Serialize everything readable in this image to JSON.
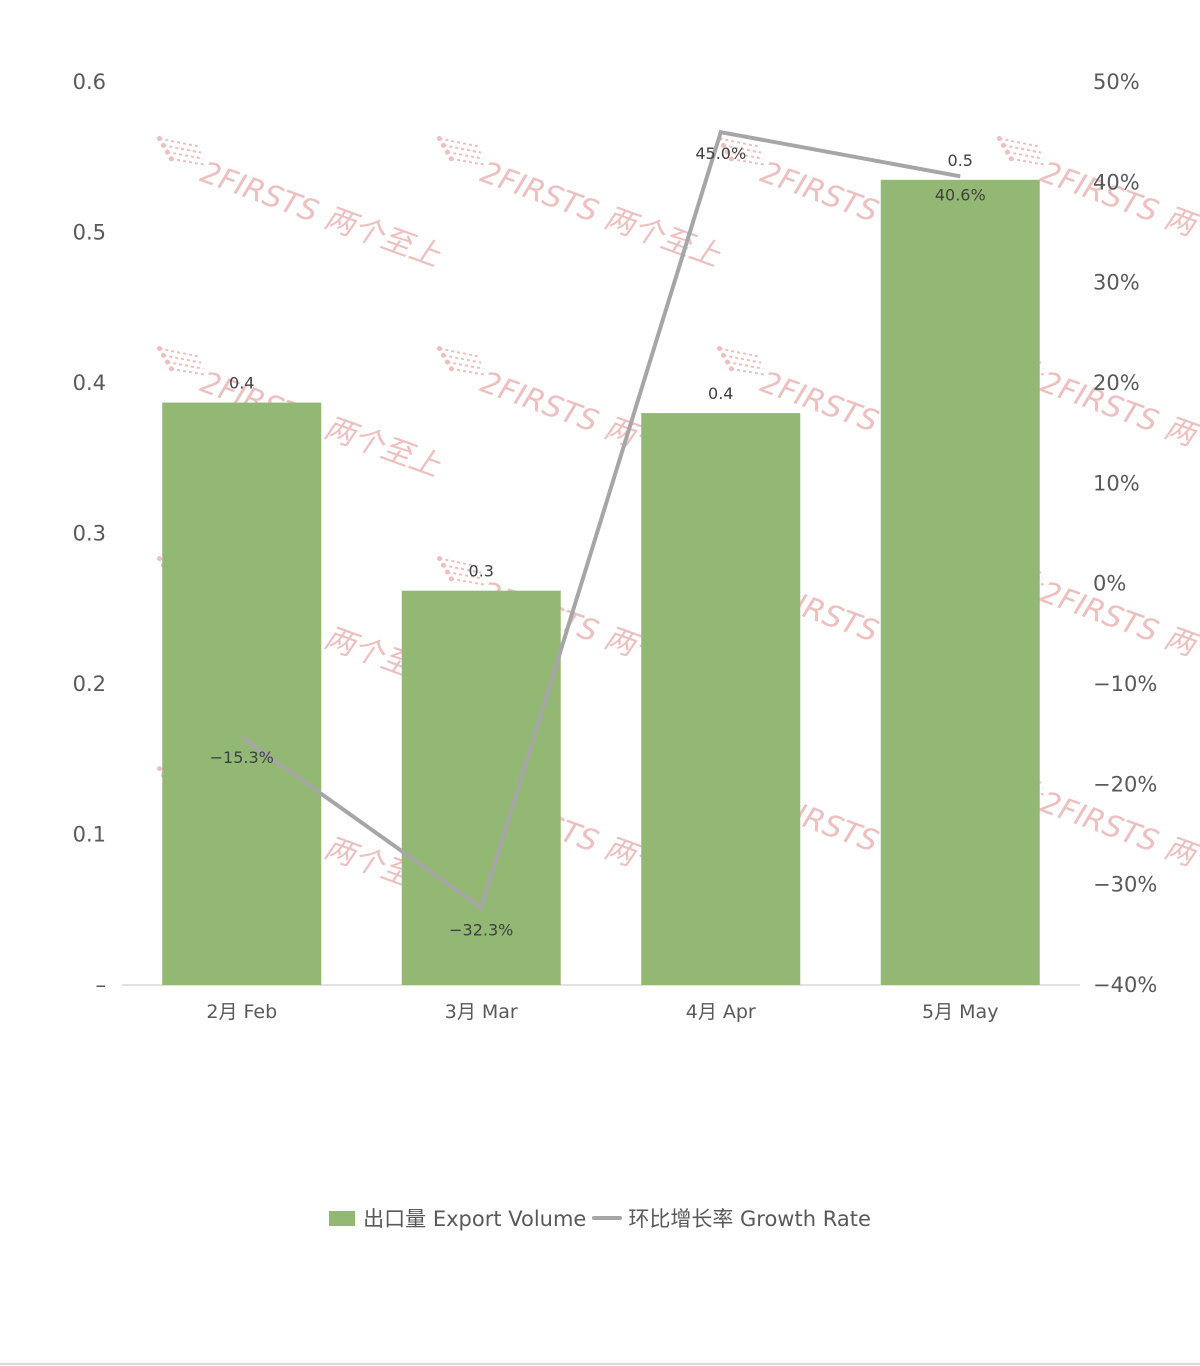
{
  "colors": {
    "bar": "#93b874",
    "line": "#a6a6a6",
    "axis": "#d9d9d9",
    "watermark": "#e9aaaa"
  },
  "watermark": {
    "text": "2FIRSTS 两个至上"
  },
  "legend": {
    "bar_label": "出口量 Export Volume",
    "line_label": "环比增长率 Growth Rate"
  },
  "chart_data": {
    "type": "bar",
    "categories": [
      "2月 Feb",
      "3月 Mar",
      "4月 Apr",
      "5月 May"
    ],
    "series": [
      {
        "name": "出口量 Export Volume",
        "type": "bar",
        "axis": "left",
        "values": [
          0.387,
          0.262,
          0.38,
          0.535
        ],
        "labels": [
          "0.4",
          "0.3",
          "0.4",
          "0.5"
        ]
      },
      {
        "name": "环比增长率 Growth Rate",
        "type": "line",
        "axis": "right",
        "values": [
          -15.3,
          -32.3,
          45.0,
          40.6
        ],
        "labels": [
          "-15.3%",
          "-32.3%",
          "45.0%",
          "40.6%"
        ]
      }
    ],
    "y_left": {
      "ylim": [
        0,
        0.6
      ],
      "ticks": [
        0,
        0.1,
        0.2,
        0.3,
        0.4,
        0.5,
        0.6
      ],
      "tick_labels": [
        "–",
        "0.1",
        "0.2",
        "0.3",
        "0.4",
        "0.5",
        "0.6"
      ]
    },
    "y_right": {
      "ylim": [
        -40,
        50
      ],
      "ticks": [
        -40,
        -30,
        -20,
        -10,
        0,
        10,
        20,
        30,
        40,
        50
      ],
      "tick_labels": [
        "-40%",
        "-30%",
        "-20%",
        "-10%",
        "0%",
        "10%",
        "20%",
        "30%",
        "40%",
        "50%"
      ]
    },
    "grid": false,
    "legend_position": "bottom"
  }
}
